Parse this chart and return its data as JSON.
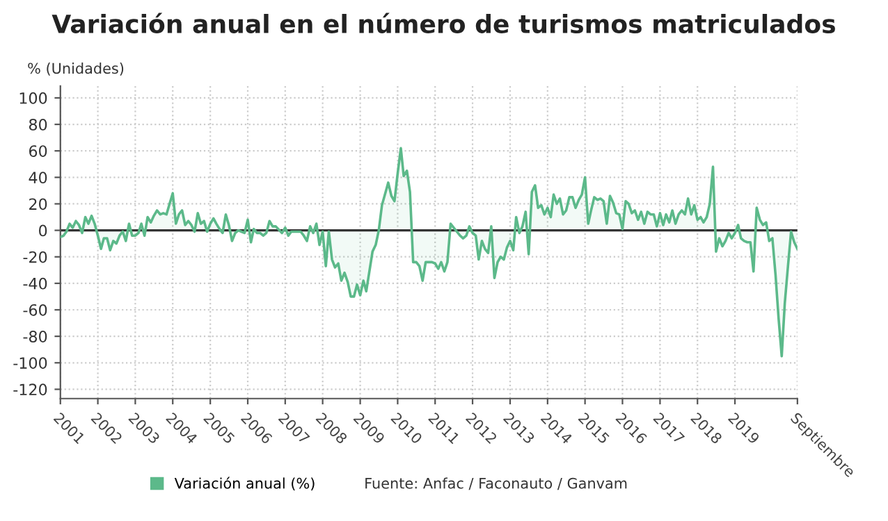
{
  "chart_data": {
    "type": "area",
    "title": "Variación anual en el número de turismos matriculados",
    "ylabel": "% (Unidades)",
    "xlim": [
      "2001-01",
      "2020-09"
    ],
    "ylim": [
      -127,
      109
    ],
    "xticks": [
      {
        "value": "2001-01",
        "label": "2001"
      },
      {
        "value": "2002-01",
        "label": "2002"
      },
      {
        "value": "2003-01",
        "label": "2003"
      },
      {
        "value": "2004-01",
        "label": "2004"
      },
      {
        "value": "2005-01",
        "label": "2005"
      },
      {
        "value": "2006-01",
        "label": "2006"
      },
      {
        "value": "2007-01",
        "label": "2007"
      },
      {
        "value": "2008-01",
        "label": "2008"
      },
      {
        "value": "2009-01",
        "label": "2009"
      },
      {
        "value": "2010-01",
        "label": "2010"
      },
      {
        "value": "2011-01",
        "label": "2011"
      },
      {
        "value": "2012-01",
        "label": "2012"
      },
      {
        "value": "2013-01",
        "label": "2013"
      },
      {
        "value": "2014-01",
        "label": "2014"
      },
      {
        "value": "2015-01",
        "label": "2015"
      },
      {
        "value": "2016-01",
        "label": "2016"
      },
      {
        "value": "2017-01",
        "label": "2017"
      },
      {
        "value": "2018-01",
        "label": "2018"
      },
      {
        "value": "2019-01",
        "label": "2019"
      },
      {
        "value": "2020-09",
        "label": "Septiembre"
      }
    ],
    "yticks": [
      -120,
      -100,
      -80,
      -60,
      -40,
      -20,
      0,
      20,
      40,
      60,
      80,
      100
    ],
    "grid": true,
    "legend": "bottom",
    "marker": "none",
    "line_style": "solid",
    "ref_lines": [
      {
        "axis": "y",
        "value": 0,
        "color": "#333333"
      }
    ],
    "annotations": [
      "Fuente: Anfac / Faconauto / Ganvam"
    ],
    "series": [
      {
        "name": "Variación anual (%)",
        "color": "#5cb98a",
        "x": [
          "2001-01",
          "2001-02",
          "2001-03",
          "2001-04",
          "2001-05",
          "2001-06",
          "2001-07",
          "2001-08",
          "2001-09",
          "2001-10",
          "2001-11",
          "2001-12",
          "2002-01",
          "2002-02",
          "2002-03",
          "2002-04",
          "2002-05",
          "2002-06",
          "2002-07",
          "2002-08",
          "2002-09",
          "2002-10",
          "2002-11",
          "2002-12",
          "2003-01",
          "2003-02",
          "2003-03",
          "2003-04",
          "2003-05",
          "2003-06",
          "2003-07",
          "2003-08",
          "2003-09",
          "2003-10",
          "2003-11",
          "2003-12",
          "2004-01",
          "2004-02",
          "2004-03",
          "2004-04",
          "2004-05",
          "2004-06",
          "2004-07",
          "2004-08",
          "2004-09",
          "2004-10",
          "2004-11",
          "2004-12",
          "2005-01",
          "2005-02",
          "2005-03",
          "2005-04",
          "2005-05",
          "2005-06",
          "2005-07",
          "2005-08",
          "2005-09",
          "2005-10",
          "2005-11",
          "2005-12",
          "2006-01",
          "2006-02",
          "2006-03",
          "2006-04",
          "2006-05",
          "2006-06",
          "2006-07",
          "2006-08",
          "2006-09",
          "2006-10",
          "2006-12",
          "2007-01",
          "2007-02",
          "2007-03",
          "2007-05",
          "2007-06",
          "2007-07",
          "2007-08",
          "2007-09",
          "2007-10",
          "2007-11",
          "2007-12",
          "2008-01",
          "2008-02",
          "2008-03",
          "2008-04",
          "2008-05",
          "2008-06",
          "2008-07",
          "2008-08",
          "2008-09",
          "2008-10",
          "2008-11",
          "2008-12",
          "2009-01",
          "2009-02",
          "2009-03",
          "2009-05",
          "2009-06",
          "2009-07",
          "2009-08",
          "2009-10",
          "2009-11",
          "2009-12",
          "2010-01",
          "2010-02",
          "2010-03",
          "2010-04",
          "2010-05",
          "2010-06",
          "2010-07",
          "2010-08",
          "2010-09",
          "2010-10",
          "2010-12",
          "2011-01",
          "2011-02",
          "2011-03",
          "2011-04",
          "2011-05",
          "2011-06",
          "2011-08",
          "2011-09",
          "2011-10",
          "2011-11",
          "2011-12",
          "2012-01",
          "2012-02",
          "2012-03",
          "2012-04",
          "2012-05",
          "2012-06",
          "2012-07",
          "2012-08",
          "2012-09",
          "2012-10",
          "2012-11",
          "2012-12",
          "2013-01",
          "2013-02",
          "2013-03",
          "2013-04",
          "2013-05",
          "2013-06",
          "2013-07",
          "2013-08",
          "2013-09",
          "2013-10",
          "2013-11",
          "2013-12",
          "2014-01",
          "2014-02",
          "2014-03",
          "2014-04",
          "2014-05",
          "2014-06",
          "2014-07",
          "2014-08",
          "2014-09",
          "2014-10",
          "2014-11",
          "2014-12",
          "2015-01",
          "2015-02",
          "2015-03",
          "2015-04",
          "2015-05",
          "2015-06",
          "2015-07",
          "2015-08",
          "2015-09",
          "2015-10",
          "2015-11",
          "2015-12",
          "2016-01",
          "2016-02",
          "2016-03",
          "2016-04",
          "2016-05",
          "2016-06",
          "2016-07",
          "2016-08",
          "2016-09",
          "2016-10",
          "2016-11",
          "2016-12",
          "2017-01",
          "2017-02",
          "2017-03",
          "2017-04",
          "2017-05",
          "2017-06",
          "2017-07",
          "2017-08",
          "2017-09",
          "2017-10",
          "2017-11",
          "2017-12",
          "2018-01",
          "2018-02",
          "2018-03",
          "2018-04",
          "2018-05",
          "2018-06",
          "2018-07",
          "2018-08",
          "2018-09",
          "2018-10",
          "2018-11",
          "2018-12",
          "2019-01",
          "2019-02",
          "2019-03",
          "2019-04",
          "2019-05",
          "2019-06",
          "2019-07",
          "2019-08",
          "2019-09",
          "2019-10",
          "2019-11",
          "2019-12",
          "2020-01",
          "2020-02",
          "2020-03",
          "2020-04",
          "2020-05",
          "2020-06",
          "2020-07",
          "2020-08",
          "2020-09"
        ],
        "values": [
          -5,
          -4,
          -1,
          5,
          2,
          7,
          4,
          -2,
          10,
          5,
          11,
          5,
          -4,
          -14,
          -6,
          -6,
          -15,
          -8,
          -10,
          -4,
          -1,
          -8,
          5,
          -4,
          -4,
          -2,
          5,
          -4,
          10,
          6,
          11,
          15,
          12,
          13,
          12,
          20,
          28,
          5,
          12,
          15,
          4,
          7,
          4,
          -1,
          13,
          5,
          7,
          -1,
          5,
          9,
          5,
          1,
          -2,
          12,
          4,
          -8,
          -2,
          0,
          -1,
          -2,
          8,
          -9,
          1,
          -2,
          -2,
          -4,
          -2,
          7,
          3,
          3,
          -2,
          2,
          -4,
          -1,
          -1,
          -1,
          -4,
          -8,
          3,
          -2,
          5,
          -11,
          -1,
          -27,
          -1,
          -22,
          -28,
          -25,
          -38,
          -32,
          -39,
          -50,
          -50,
          -41,
          -49,
          -38,
          -46,
          -16,
          -11,
          0,
          19,
          36,
          26,
          22,
          43,
          62,
          41,
          45,
          29,
          -24,
          -24,
          -27,
          -38,
          -24,
          -24,
          -25,
          -29,
          -24,
          -31,
          -24,
          5,
          -1,
          -4,
          -6,
          -4,
          3,
          -2,
          -4,
          -22,
          -8,
          -14,
          -17,
          3,
          -36,
          -24,
          -20,
          -22,
          -13,
          -8,
          -15,
          10,
          -2,
          3,
          14,
          -18,
          29,
          34,
          17,
          19,
          12,
          17,
          10,
          27,
          20,
          24,
          12,
          15,
          25,
          25,
          17,
          23,
          27,
          40,
          5,
          15,
          25,
          23,
          24,
          22,
          5,
          26,
          21,
          13,
          12,
          1,
          22,
          20,
          13,
          15,
          8,
          14,
          5,
          14,
          12,
          12,
          3,
          13,
          4,
          12,
          6,
          15,
          5,
          12,
          15,
          12,
          24,
          12,
          19,
          8,
          10,
          6,
          10,
          20,
          48,
          -16,
          -6,
          -12,
          -8,
          -2,
          -6,
          -2,
          4,
          -6,
          -8,
          -9,
          -9,
          -31,
          17,
          8,
          4,
          6,
          -8,
          -6,
          -34,
          -66,
          -95,
          -55,
          -27,
          -1,
          -9,
          -14
        ]
      }
    ]
  }
}
